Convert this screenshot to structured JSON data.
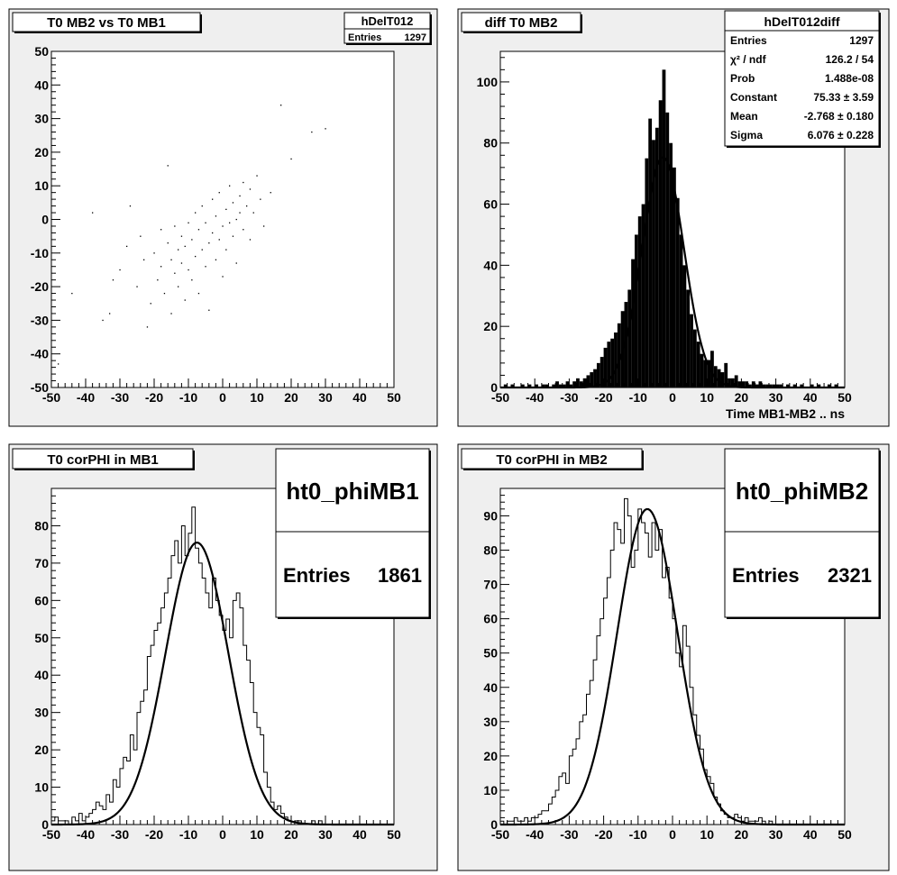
{
  "window": {
    "background": "#ffffff",
    "pad_fill": "#efefef",
    "line_color": "#000000"
  },
  "chart_data": [
    {
      "type": "scatter",
      "title": "T0 MB2 vs T0 MB1",
      "xlim": [
        -50,
        50
      ],
      "ylim": [
        -50,
        50
      ],
      "xticks": [
        "-50",
        "-40",
        "-30",
        "-20",
        "-10",
        "0",
        "10",
        "20",
        "30",
        "40",
        "50"
      ],
      "yticks": [
        "50",
        "40",
        "30",
        "20",
        "10",
        "0",
        "-10",
        "-20",
        "-30",
        "-40",
        "-50"
      ],
      "grid": false,
      "stats": {
        "name": "hDelT012",
        "rows": [
          {
            "label": "Entries",
            "value": "1297"
          }
        ]
      },
      "points": [
        [
          -48,
          -43
        ],
        [
          -44,
          -22
        ],
        [
          -38,
          2
        ],
        [
          -35,
          -30
        ],
        [
          -33,
          -28
        ],
        [
          -32,
          -18
        ],
        [
          -30,
          -15
        ],
        [
          -28,
          -8
        ],
        [
          -27,
          4
        ],
        [
          -25,
          -20
        ],
        [
          -24,
          -5
        ],
        [
          -23,
          -12
        ],
        [
          -22,
          -32
        ],
        [
          -21,
          -25
        ],
        [
          -20,
          -10
        ],
        [
          -19,
          -18
        ],
        [
          -18,
          -3
        ],
        [
          -18,
          -14
        ],
        [
          -17,
          -22
        ],
        [
          -16,
          16
        ],
        [
          -16,
          -7
        ],
        [
          -15,
          -12
        ],
        [
          -15,
          -28
        ],
        [
          -14,
          -16
        ],
        [
          -14,
          -2
        ],
        [
          -13,
          -9
        ],
        [
          -13,
          -20
        ],
        [
          -12,
          -5
        ],
        [
          -12,
          -13
        ],
        [
          -11,
          -24
        ],
        [
          -11,
          -8
        ],
        [
          -10,
          -1
        ],
        [
          -10,
          -15
        ],
        [
          -9,
          -6
        ],
        [
          -9,
          -18
        ],
        [
          -8,
          2
        ],
        [
          -8,
          -11
        ],
        [
          -7,
          -3
        ],
        [
          -7,
          -22
        ],
        [
          -6,
          -9
        ],
        [
          -6,
          4
        ],
        [
          -5,
          -14
        ],
        [
          -5,
          -1
        ],
        [
          -4,
          -7
        ],
        [
          -4,
          -27
        ],
        [
          -3,
          6
        ],
        [
          -3,
          -4
        ],
        [
          -2,
          -12
        ],
        [
          -2,
          1
        ],
        [
          -1,
          -6
        ],
        [
          -1,
          8
        ],
        [
          0,
          -2
        ],
        [
          0,
          -17
        ],
        [
          1,
          3
        ],
        [
          1,
          -9
        ],
        [
          2,
          -1
        ],
        [
          2,
          10
        ],
        [
          3,
          5
        ],
        [
          3,
          -5
        ],
        [
          4,
          0
        ],
        [
          4,
          -13
        ],
        [
          5,
          7
        ],
        [
          5,
          2
        ],
        [
          6,
          -3
        ],
        [
          6,
          11
        ],
        [
          7,
          4
        ],
        [
          8,
          9
        ],
        [
          8,
          -6
        ],
        [
          9,
          2
        ],
        [
          10,
          13
        ],
        [
          11,
          6
        ],
        [
          12,
          -2
        ],
        [
          14,
          8
        ],
        [
          17,
          34
        ],
        [
          20,
          18
        ],
        [
          26,
          26
        ],
        [
          30,
          27
        ]
      ]
    },
    {
      "type": "bar",
      "title": "diff T0 MB2",
      "xlabel": "Time MB1-MB2  ..  ns",
      "xlim": [
        -50,
        50
      ],
      "ylim": [
        0,
        110
      ],
      "xticks": [
        "-50",
        "-40",
        "-30",
        "-20",
        "-10",
        "0",
        "10",
        "20",
        "30",
        "40",
        "50"
      ],
      "yticks": [
        "0",
        "20",
        "40",
        "60",
        "80",
        "100"
      ],
      "bins_x": [
        -50,
        -49,
        -48,
        -47,
        -46,
        -45,
        -44,
        -43,
        -42,
        -41,
        -40,
        -39,
        -38,
        -37,
        -36,
        -35,
        -34,
        -33,
        -32,
        -31,
        -30,
        -29,
        -28,
        -27,
        -26,
        -25,
        -24,
        -23,
        -22,
        -21,
        -20,
        -19,
        -18,
        -17,
        -16,
        -15,
        -14,
        -13,
        -12,
        -11,
        -10,
        -9,
        -8,
        -7,
        -6,
        -5,
        -4,
        -3,
        -2,
        -1,
        0,
        1,
        2,
        3,
        4,
        5,
        6,
        7,
        8,
        9,
        10,
        11,
        12,
        13,
        14,
        15,
        16,
        17,
        18,
        19,
        20,
        21,
        22,
        23,
        24,
        25,
        26,
        27,
        28,
        29,
        30,
        31,
        32,
        33,
        34,
        35,
        36,
        37,
        38,
        39,
        40,
        41,
        42,
        43,
        44,
        45,
        46,
        47,
        48,
        49
      ],
      "values": [
        0,
        1,
        0,
        1,
        0,
        0,
        1,
        0,
        1,
        0,
        1,
        0,
        1,
        1,
        0,
        1,
        2,
        1,
        1,
        2,
        1,
        2,
        3,
        2,
        3,
        4,
        5,
        6,
        8,
        10,
        13,
        15,
        16,
        18,
        21,
        25,
        28,
        32,
        42,
        50,
        56,
        60,
        75,
        88,
        81,
        85,
        94,
        104,
        90,
        80,
        72,
        62,
        50,
        40,
        32,
        24,
        19,
        15,
        11,
        9,
        9,
        12,
        7,
        6,
        5,
        8,
        3,
        3,
        4,
        2,
        2,
        2,
        1,
        2,
        1,
        2,
        1,
        1,
        1,
        1,
        1,
        1,
        0,
        1,
        0,
        1,
        0,
        1,
        0,
        0,
        1,
        0,
        1,
        0,
        0,
        1,
        0,
        1,
        0,
        0
      ],
      "fit": {
        "constant": 75.33,
        "mean": -2.768,
        "sigma": 6.076
      },
      "stats": {
        "name": "hDelT012diff",
        "rows": [
          {
            "label": "Entries",
            "value": "1297"
          },
          {
            "label": "χ² / ndf",
            "value": "126.2 / 54"
          },
          {
            "label": "Prob",
            "value": "1.488e-08"
          },
          {
            "label": "Constant",
            "value": "75.33 ± 3.59"
          },
          {
            "label": "Mean",
            "value": "-2.768 ± 0.180"
          },
          {
            "label": "Sigma",
            "value": "6.076 ± 0.228"
          }
        ]
      }
    },
    {
      "type": "line",
      "title": "T0 corPHI in MB1",
      "xlim": [
        -50,
        50
      ],
      "ylim": [
        0,
        90
      ],
      "xticks": [
        "-50",
        "-40",
        "-30",
        "-20",
        "-10",
        "0",
        "10",
        "20",
        "30",
        "40",
        "50"
      ],
      "yticks": [
        "0",
        "10",
        "20",
        "30",
        "40",
        "50",
        "60",
        "70",
        "80"
      ],
      "bins_x": [
        -50,
        -49,
        -48,
        -47,
        -46,
        -45,
        -44,
        -43,
        -42,
        -41,
        -40,
        -39,
        -38,
        -37,
        -36,
        -35,
        -34,
        -33,
        -32,
        -31,
        -30,
        -29,
        -28,
        -27,
        -26,
        -25,
        -24,
        -23,
        -22,
        -21,
        -20,
        -19,
        -18,
        -17,
        -16,
        -15,
        -14,
        -13,
        -12,
        -11,
        -10,
        -9,
        -8,
        -7,
        -6,
        -5,
        -4,
        -3,
        -2,
        -1,
        0,
        1,
        2,
        3,
        4,
        5,
        6,
        7,
        8,
        9,
        10,
        11,
        12,
        13,
        14,
        15,
        16,
        17,
        18,
        19,
        20,
        21,
        22,
        23,
        24,
        25,
        26,
        27,
        28,
        29,
        30,
        31,
        32,
        33,
        34,
        35,
        36,
        37,
        38,
        39,
        40,
        41,
        42,
        43,
        44,
        45,
        46,
        47,
        48,
        49
      ],
      "values": [
        1,
        2,
        1,
        1,
        1,
        0,
        2,
        1,
        3,
        1,
        2,
        3,
        4,
        6,
        5,
        4,
        8,
        6,
        12,
        10,
        15,
        18,
        17,
        24,
        20,
        30,
        33,
        36,
        45,
        48,
        52,
        54,
        58,
        62,
        66,
        72,
        76,
        70,
        80,
        72,
        78,
        85,
        74,
        70,
        66,
        62,
        58,
        66,
        60,
        56,
        52,
        55,
        50,
        60,
        62,
        58,
        48,
        44,
        38,
        30,
        26,
        24,
        14,
        10,
        6,
        4,
        5,
        3,
        2,
        1,
        0,
        1,
        1,
        0,
        0,
        0,
        1,
        0,
        1,
        0,
        0,
        0,
        0,
        0,
        0,
        0,
        0,
        0,
        0,
        0,
        0,
        0,
        0,
        0,
        0,
        0,
        0,
        0,
        0,
        0
      ],
      "fit": {
        "constant": 75.5,
        "mean": -7.5,
        "sigma": 9.2
      },
      "stats": {
        "name": "ht0_phiMB1",
        "rows": [
          {
            "label": "Entries",
            "value": "1861"
          }
        ]
      }
    },
    {
      "type": "line",
      "title": "T0 corPHI in MB2",
      "xlim": [
        -50,
        50
      ],
      "ylim": [
        0,
        98
      ],
      "xticks": [
        "-50",
        "-40",
        "-30",
        "-20",
        "-10",
        "0",
        "10",
        "20",
        "30",
        "40",
        "50"
      ],
      "yticks": [
        "0",
        "10",
        "20",
        "30",
        "40",
        "50",
        "60",
        "70",
        "80",
        "90"
      ],
      "bins_x": [
        -50,
        -49,
        -48,
        -47,
        -46,
        -45,
        -44,
        -43,
        -42,
        -41,
        -40,
        -39,
        -38,
        -37,
        -36,
        -35,
        -34,
        -33,
        -32,
        -31,
        -30,
        -29,
        -28,
        -27,
        -26,
        -25,
        -24,
        -23,
        -22,
        -21,
        -20,
        -19,
        -18,
        -17,
        -16,
        -15,
        -14,
        -13,
        -12,
        -11,
        -10,
        -9,
        -8,
        -7,
        -6,
        -5,
        -4,
        -3,
        -2,
        -1,
        0,
        1,
        2,
        3,
        4,
        5,
        6,
        7,
        8,
        9,
        10,
        11,
        12,
        13,
        14,
        15,
        16,
        17,
        18,
        19,
        20,
        21,
        22,
        23,
        24,
        25,
        26,
        27,
        28,
        29,
        30,
        31,
        32,
        33,
        34,
        35,
        36,
        37,
        38,
        39,
        40,
        41,
        42,
        43,
        44,
        45,
        46,
        47,
        48,
        49
      ],
      "values": [
        1,
        0,
        1,
        1,
        2,
        1,
        1,
        2,
        1,
        2,
        2,
        3,
        4,
        4,
        6,
        8,
        10,
        14,
        15,
        12,
        20,
        22,
        25,
        30,
        32,
        38,
        42,
        48,
        55,
        60,
        66,
        72,
        80,
        88,
        86,
        82,
        95,
        90,
        75,
        80,
        92,
        88,
        85,
        78,
        88,
        80,
        86,
        72,
        75,
        66,
        60,
        50,
        46,
        58,
        52,
        40,
        32,
        26,
        22,
        16,
        14,
        12,
        8,
        6,
        4,
        3,
        2,
        2,
        3,
        2,
        1,
        2,
        1,
        1,
        1,
        2,
        1,
        0,
        1,
        0,
        0,
        0,
        0,
        0,
        0,
        0,
        0,
        0,
        0,
        0,
        0,
        0,
        0,
        0,
        0,
        0,
        0,
        0,
        0,
        0
      ],
      "fit": {
        "constant": 92,
        "mean": -7.3,
        "sigma": 8.8
      },
      "stats": {
        "name": "ht0_phiMB2",
        "rows": [
          {
            "label": "Entries",
            "value": "2321"
          }
        ]
      }
    }
  ]
}
